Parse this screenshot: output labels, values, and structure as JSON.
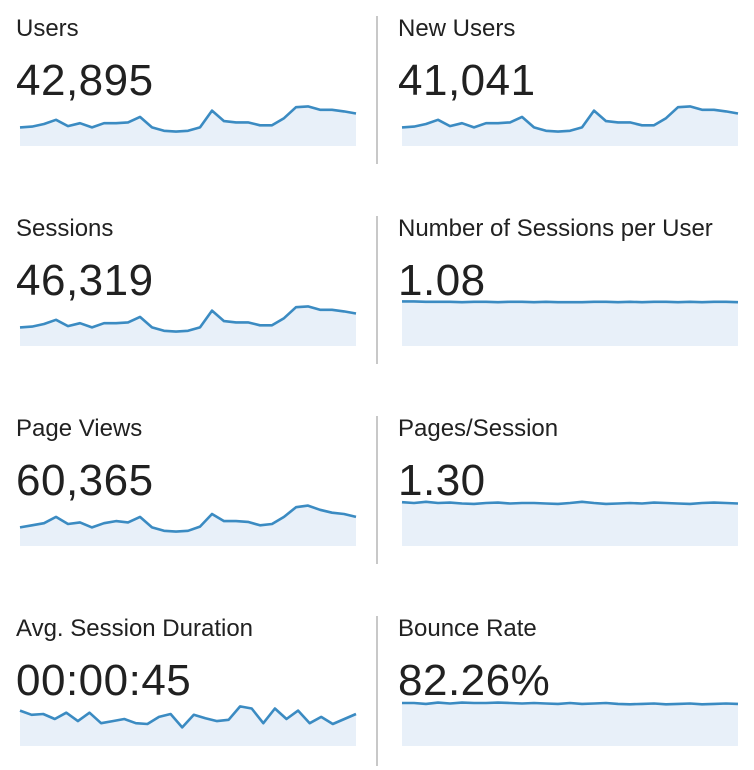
{
  "colors": {
    "line": "#3b8bc2",
    "fill": "#e8f0f9",
    "divider": "#c8c8c8",
    "text": "#212121"
  },
  "metrics": [
    {
      "label": "Users",
      "value": "42,895",
      "trend": [
        0.3,
        0.32,
        0.38,
        0.48,
        0.33,
        0.4,
        0.3,
        0.4,
        0.4,
        0.42,
        0.55,
        0.3,
        0.22,
        0.2,
        0.22,
        0.3,
        0.7,
        0.45,
        0.42,
        0.42,
        0.35,
        0.35,
        0.52,
        0.78,
        0.8,
        0.72,
        0.72,
        0.68,
        0.63
      ]
    },
    {
      "label": "New Users",
      "value": "41,041",
      "trend": [
        0.3,
        0.32,
        0.38,
        0.48,
        0.33,
        0.4,
        0.3,
        0.4,
        0.4,
        0.42,
        0.55,
        0.3,
        0.22,
        0.2,
        0.22,
        0.3,
        0.7,
        0.45,
        0.42,
        0.42,
        0.35,
        0.35,
        0.52,
        0.78,
        0.8,
        0.72,
        0.72,
        0.68,
        0.63
      ]
    },
    {
      "label": "Sessions",
      "value": "46,319",
      "trend": [
        0.3,
        0.32,
        0.38,
        0.48,
        0.33,
        0.4,
        0.3,
        0.4,
        0.4,
        0.42,
        0.55,
        0.3,
        0.22,
        0.2,
        0.22,
        0.3,
        0.7,
        0.45,
        0.42,
        0.42,
        0.35,
        0.35,
        0.52,
        0.78,
        0.8,
        0.72,
        0.72,
        0.68,
        0.63
      ]
    },
    {
      "label": "Number of Sessions per User",
      "value": "1.08",
      "trend": [
        0.92,
        0.92,
        0.91,
        0.91,
        0.91,
        0.9,
        0.91,
        0.91,
        0.9,
        0.91,
        0.91,
        0.9,
        0.91,
        0.9,
        0.9,
        0.9,
        0.91,
        0.91,
        0.9,
        0.91,
        0.9,
        0.91,
        0.91,
        0.9,
        0.91,
        0.9,
        0.91,
        0.91,
        0.9
      ]
    },
    {
      "label": "Page Views",
      "value": "60,365",
      "trend": [
        0.3,
        0.35,
        0.4,
        0.55,
        0.38,
        0.42,
        0.3,
        0.4,
        0.45,
        0.42,
        0.55,
        0.3,
        0.22,
        0.2,
        0.22,
        0.32,
        0.62,
        0.45,
        0.45,
        0.43,
        0.35,
        0.38,
        0.55,
        0.78,
        0.82,
        0.72,
        0.65,
        0.62,
        0.55
      ]
    },
    {
      "label": "Pages/Session",
      "value": "1.30",
      "trend": [
        0.9,
        0.88,
        0.91,
        0.88,
        0.89,
        0.87,
        0.86,
        0.88,
        0.89,
        0.87,
        0.88,
        0.88,
        0.87,
        0.86,
        0.88,
        0.91,
        0.88,
        0.86,
        0.87,
        0.88,
        0.87,
        0.89,
        0.88,
        0.87,
        0.86,
        0.88,
        0.89,
        0.88,
        0.87
      ]
    },
    {
      "label": "Avg. Session Duration",
      "value": "00:00:45",
      "trend": [
        0.7,
        0.6,
        0.62,
        0.5,
        0.65,
        0.45,
        0.65,
        0.4,
        0.45,
        0.5,
        0.4,
        0.38,
        0.55,
        0.62,
        0.3,
        0.6,
        0.52,
        0.45,
        0.48,
        0.8,
        0.75,
        0.4,
        0.75,
        0.5,
        0.7,
        0.4,
        0.55,
        0.38,
        0.5,
        0.62
      ]
    },
    {
      "label": "Bounce Rate",
      "value": "82.26%",
      "trend": [
        0.88,
        0.88,
        0.86,
        0.89,
        0.87,
        0.89,
        0.88,
        0.88,
        0.89,
        0.88,
        0.87,
        0.88,
        0.87,
        0.86,
        0.88,
        0.86,
        0.87,
        0.88,
        0.86,
        0.85,
        0.86,
        0.87,
        0.85,
        0.86,
        0.87,
        0.85,
        0.86,
        0.87,
        0.86
      ]
    }
  ]
}
